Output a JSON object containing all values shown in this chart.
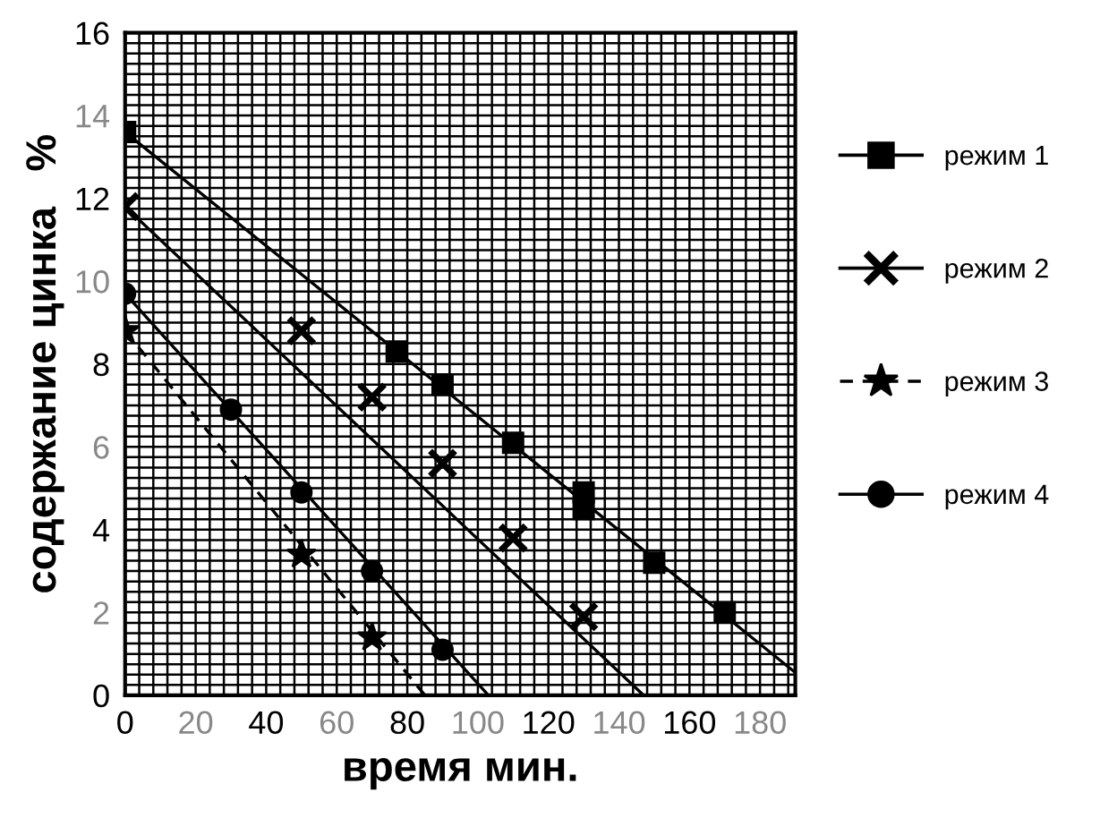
{
  "chart_data": {
    "type": "scatter",
    "xlabel": "время мин.",
    "ylabel": "содержание цинка   %",
    "xlim": [
      0,
      190
    ],
    "ylim": [
      0,
      16
    ],
    "xticks": [
      0,
      20,
      40,
      60,
      80,
      100,
      120,
      140,
      160,
      180
    ],
    "yticks": [
      0,
      2,
      4,
      6,
      8,
      10,
      12,
      14,
      16
    ],
    "grid": true,
    "legend": "right",
    "series": [
      {
        "name": "режим 1",
        "color": "#000000",
        "marker": "square",
        "line_style": "solid",
        "x": [
          0,
          77,
          90,
          110,
          130,
          130,
          150,
          170
        ],
        "values": [
          13.6,
          8.3,
          7.5,
          6.1,
          4.9,
          4.5,
          3.2,
          2.0
        ]
      },
      {
        "name": "режим 2",
        "color": "#000000",
        "marker": "cross",
        "line_style": "solid",
        "x": [
          0,
          50,
          70,
          90,
          110,
          130
        ],
        "values": [
          11.8,
          8.8,
          7.2,
          5.6,
          3.8,
          1.9
        ]
      },
      {
        "name": "режим 3",
        "color": "#000000",
        "marker": "star",
        "line_style": "dashed",
        "x": [
          0,
          50,
          70
        ],
        "values": [
          8.8,
          3.4,
          1.4
        ]
      },
      {
        "name": "режим 4",
        "color": "#000000",
        "marker": "circle",
        "line_style": "solid",
        "x": [
          0,
          30,
          50,
          70,
          90
        ],
        "values": [
          9.7,
          6.9,
          4.9,
          3.0,
          1.1
        ]
      },
      {
        "color": "#000000",
        "type": "line",
        "marker": "none",
        "line_style": "solid",
        "x": [
          0,
          190
        ],
        "values": [
          13.6,
          0.55
        ]
      },
      {
        "color": "#000000",
        "type": "line",
        "marker": "none",
        "line_style": "solid",
        "x": [
          0,
          147
        ],
        "values": [
          11.8,
          0
        ]
      },
      {
        "color": "#000000",
        "type": "line",
        "marker": "none",
        "line_style": "dashed",
        "x": [
          0,
          85
        ],
        "values": [
          8.8,
          0
        ]
      },
      {
        "color": "#000000",
        "type": "line",
        "marker": "none",
        "line_style": "solid",
        "x": [
          0,
          103
        ],
        "values": [
          9.7,
          0
        ]
      }
    ]
  }
}
